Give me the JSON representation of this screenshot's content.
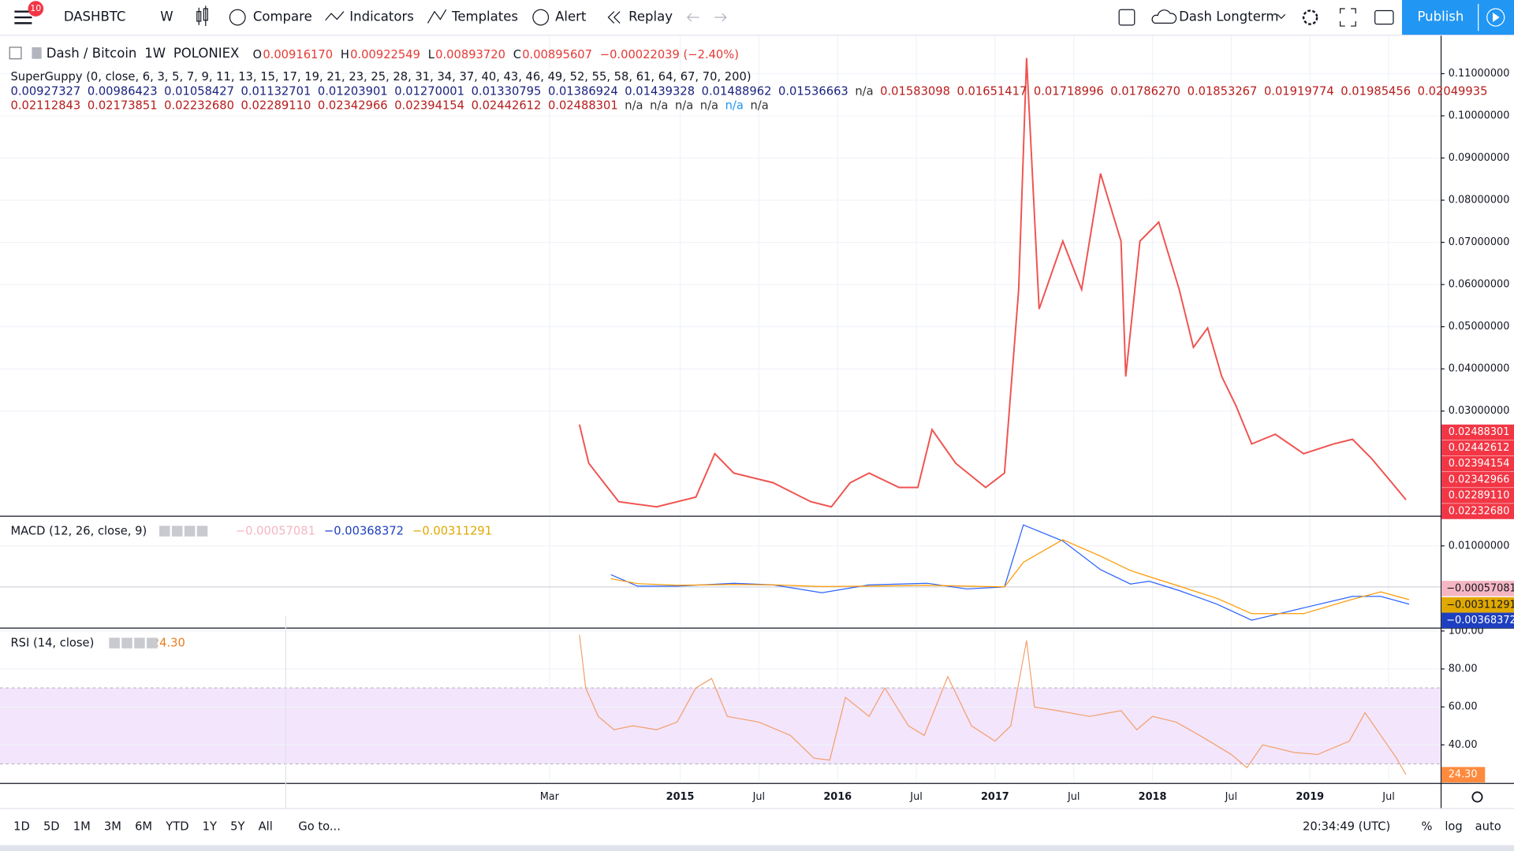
{
  "toolbar": {
    "badge": "10",
    "symbol": "DASHBTC",
    "interval": "W",
    "compare": "Compare",
    "indicators": "Indicators",
    "templates": "Templates",
    "alert": "Alert",
    "replay": "Replay",
    "layout": "Dash Longterm",
    "publish": "Publish"
  },
  "legend": {
    "symbol": "Dash / Bitcoin",
    "interval": "1W",
    "exchange": "POLONIEX",
    "ohlc": [
      [
        "O",
        "0.00916170"
      ],
      [
        "H",
        "0.00922549"
      ],
      [
        "L",
        "0.00893720"
      ],
      [
        "C",
        "0.00895607"
      ]
    ],
    "change": "−0.00022039 (−2.40%)"
  },
  "guppy": {
    "title": "SuperGuppy (0, close, 6, 3, 5, 7, 9, 11, 13, 15, 17, 19, 21, 23, 25, 28, 31, 34, 37, 40, 43, 46, 49, 52, 55, 58, 61, 64, 67, 70, 200)",
    "rows": [
      [
        {
          "text": "0.00927327",
          "color": "#1a237e"
        },
        {
          "text": "0.00986423",
          "color": "#1a237e"
        },
        {
          "text": "0.01058427",
          "color": "#1a237e"
        },
        {
          "text": "0.01132701",
          "color": "#1a237e"
        },
        {
          "text": "0.01203901",
          "color": "#1a237e"
        },
        {
          "text": "0.01270001",
          "color": "#1a237e"
        },
        {
          "text": "0.01330795",
          "color": "#1a237e"
        },
        {
          "text": "0.01386924",
          "color": "#1a237e"
        },
        {
          "text": "0.01439328",
          "color": "#1a237e"
        },
        {
          "text": "0.01488962",
          "color": "#1a237e"
        },
        {
          "text": "0.01536663",
          "color": "#1a237e"
        },
        {
          "text": "n/a",
          "color": "#333333"
        },
        {
          "text": "0.01583098",
          "color": "#b71c1c"
        },
        {
          "text": "0.01651417",
          "color": "#b71c1c"
        },
        {
          "text": "0.01718996",
          "color": "#b71c1c"
        },
        {
          "text": "0.01786270",
          "color": "#b71c1c"
        },
        {
          "text": "0.01853267",
          "color": "#b71c1c"
        },
        {
          "text": "0.01919774",
          "color": "#b71c1c"
        },
        {
          "text": "0.01985456",
          "color": "#b71c1c"
        },
        {
          "text": "0.02049935",
          "color": "#b71c1c"
        }
      ],
      [
        {
          "text": "0.02112843",
          "color": "#b71c1c"
        },
        {
          "text": "0.02173851",
          "color": "#b71c1c"
        },
        {
          "text": "0.02232680",
          "color": "#b71c1c"
        },
        {
          "text": "0.02289110",
          "color": "#b71c1c"
        },
        {
          "text": "0.02342966",
          "color": "#b71c1c"
        },
        {
          "text": "0.02394154",
          "color": "#b71c1c"
        },
        {
          "text": "0.02442612",
          "color": "#b71c1c"
        },
        {
          "text": "0.02488301",
          "color": "#b71c1c"
        },
        {
          "text": "n/a",
          "color": "#333333"
        },
        {
          "text": "n/a",
          "color": "#333333"
        },
        {
          "text": "n/a",
          "color": "#333333"
        },
        {
          "text": "n/a",
          "color": "#333333"
        },
        {
          "text": "n/a",
          "color": "#2196f3"
        },
        {
          "text": "n/a",
          "color": "#333333"
        }
      ]
    ]
  },
  "price_labels": [
    "0.02488301",
    "0.02442612",
    "0.02394154",
    "0.02342966",
    "0.02289110",
    "0.02232680"
  ],
  "chart_data": [
    {
      "type": "line",
      "color": "#ef5350",
      "x": [
        2014.36,
        2014.42,
        2014.61,
        2014.85,
        2015.1,
        2015.22,
        2015.34,
        2015.59,
        2015.83,
        2015.96,
        2016.08,
        2016.2,
        2016.39,
        2016.51,
        2016.6,
        2016.75,
        2016.94,
        2017.06,
        2017.15,
        2017.2,
        2017.28,
        2017.43,
        2017.55,
        2017.67,
        2017.8,
        2017.83,
        2017.92,
        2018.04,
        2018.17,
        2018.26,
        2018.35,
        2018.44,
        2018.53,
        2018.63,
        2018.78,
        2018.96,
        2019.15,
        2019.27,
        2019.39,
        2019.52,
        2019.61
      ],
      "values": [
        0.0268,
        0.0176,
        0.0085,
        0.0073,
        0.0096,
        0.0199,
        0.0153,
        0.013,
        0.0085,
        0.0073,
        0.013,
        0.0153,
        0.0119,
        0.0119,
        0.0256,
        0.0176,
        0.0119,
        0.0153,
        0.0588,
        0.1137,
        0.0542,
        0.0703,
        0.0588,
        0.0863,
        0.0703,
        0.0382,
        0.0703,
        0.0748,
        0.0588,
        0.0451,
        0.0497,
        0.0382,
        0.0313,
        0.0222,
        0.0245,
        0.0199,
        0.0222,
        0.0233,
        0.0188,
        0.013,
        0.00896
      ],
      "xlim": [
        2010.68,
        2019.83
      ],
      "ylim": [
        0.0053,
        0.119
      ],
      "xticks": [
        {
          "value": 2014.17,
          "label": "Mar"
        },
        2015,
        {
          "value": 2015.5,
          "label": "Jul"
        },
        2016,
        {
          "value": 2016.5,
          "label": "Jul"
        },
        2017,
        {
          "value": 2017.5,
          "label": "Jul"
        },
        2018,
        {
          "value": 2018.5,
          "label": "Jul"
        },
        2019,
        {
          "value": 2019.5,
          "label": "Jul"
        }
      ],
      "yticks": [
        {
          "value": 0.03,
          "label": "0.03000000"
        },
        {
          "value": 0.04,
          "label": "0.04000000"
        },
        {
          "value": 0.05,
          "label": "0.05000000"
        },
        {
          "value": 0.06,
          "label": "0.06000000"
        },
        {
          "value": 0.07,
          "label": "0.07000000"
        },
        {
          "value": 0.08,
          "label": "0.08000000"
        },
        {
          "value": 0.09,
          "label": "0.09000000"
        },
        {
          "value": 0.1,
          "label": "0.10000000"
        },
        {
          "value": 0.11,
          "label": "0.11000000"
        }
      ],
      "grid": true
    },
    {
      "type": "line",
      "title": "MACD (12, 26, close, 9)",
      "legend_values": [
        "−0.00057081",
        "−0.00368372",
        "−0.00311291"
      ],
      "legend_colors": [
        "#f4b6c2",
        "#1e3fbf",
        "#e0a800"
      ],
      "x": [
        2014.56,
        2014.73,
        2014.98,
        2015.34,
        2015.59,
        2015.9,
        2016.2,
        2016.57,
        2016.82,
        2017.06,
        2017.18,
        2017.43,
        2017.67,
        2017.86,
        2017.98,
        2018.17,
        2018.41,
        2018.63,
        2018.96,
        2019.27,
        2019.45,
        2019.63
      ],
      "series": [
        {
          "color": "#2962ff",
          "values": [
            0.003,
            0.0002,
            0.0002,
            0.0009,
            0.0005,
            -0.0014,
            0.0005,
            0.0009,
            -0.0005,
            0,
            0.0151,
            0.0112,
            0.0042,
            0.0007,
            0.0014,
            -0.0009,
            -0.0042,
            -0.0081,
            -0.0051,
            -0.0023,
            -0.0023,
            -0.0042
          ]
        },
        {
          "color": "#ff9800",
          "values": [
            0.002,
            0.0008,
            0.0004,
            0.0006,
            0.0005,
            0.0001,
            0.0002,
            0.0004,
            0.0002,
            0,
            0.006,
            0.0115,
            0.0075,
            0.004,
            0.0025,
            0.0002,
            -0.0028,
            -0.0065,
            -0.0065,
            -0.003,
            -0.0012,
            -0.0031
          ]
        }
      ],
      "xlim": [
        2010.68,
        2019.83
      ],
      "ylim": [
        -0.0098,
        0.017
      ],
      "yticks": [
        {
          "value": 0.01,
          "label": "0.01000000"
        }
      ]
    },
    {
      "type": "line",
      "title": "RSI (14, close)",
      "legend_value": "24.30",
      "color": "#f2a06e",
      "band": [
        30,
        70
      ],
      "band_color": "#f3e5fb",
      "x": [
        2014.36,
        2014.4,
        2014.48,
        2014.58,
        2014.7,
        2014.85,
        2014.98,
        2015.1,
        2015.2,
        2015.3,
        2015.5,
        2015.7,
        2015.85,
        2015.95,
        2016.05,
        2016.2,
        2016.3,
        2016.45,
        2016.55,
        2016.7,
        2016.85,
        2017.0,
        2017.1,
        2017.2,
        2017.25,
        2017.4,
        2017.6,
        2017.8,
        2017.9,
        2018.0,
        2018.15,
        2018.3,
        2018.5,
        2018.6,
        2018.7,
        2018.9,
        2019.05,
        2019.25,
        2019.35,
        2019.45,
        2019.55,
        2019.61
      ],
      "values": [
        98,
        70,
        55,
        48,
        50,
        48,
        52,
        70,
        75,
        55,
        52,
        45,
        33,
        32,
        65,
        55,
        70,
        50,
        45,
        76,
        50,
        42,
        50,
        95,
        60,
        58,
        55,
        58,
        48,
        55,
        52,
        45,
        35,
        28,
        40,
        36,
        35,
        42,
        57,
        45,
        33,
        24.3
      ],
      "xlim": [
        2010.68,
        2019.83
      ],
      "ylim": [
        20.7,
        101
      ],
      "yticks": [
        {
          "value": 40,
          "label": "40.00"
        },
        {
          "value": 60,
          "label": "60.00"
        },
        {
          "value": 80,
          "label": "80.00"
        },
        {
          "value": 100,
          "label": "100.00"
        }
      ]
    }
  ],
  "range_buttons": [
    "1D",
    "5D",
    "1M",
    "3M",
    "6M",
    "YTD",
    "1Y",
    "5Y",
    "All"
  ],
  "goto": "Go to...",
  "clock": "20:34:49 (UTC)",
  "scale_buttons": [
    "%",
    "log",
    "auto"
  ]
}
